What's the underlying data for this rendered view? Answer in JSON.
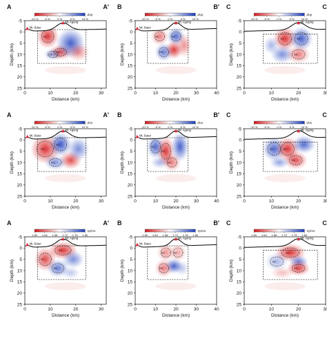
{
  "chart_data": {
    "type": "heatmap",
    "layout": {
      "rows": 3,
      "cols": 3
    },
    "shared_axes": {
      "xlabel": "Distance (km)",
      "ylabel": "Depth (km)",
      "xlim": [
        0,
        40
      ],
      "ylim": [
        25,
        -5
      ],
      "col_x_ticks": [
        [
          0,
          10,
          20,
          30
        ],
        [
          0,
          10,
          20,
          30,
          40
        ],
        [
          0,
          10,
          20,
          30
        ]
      ],
      "col_x_max": [
        32,
        40,
        30
      ],
      "y_ticks": [
        -5,
        0,
        5,
        10,
        15,
        20,
        25
      ]
    },
    "profiles": [
      {
        "start_label": "A",
        "end_label": "A'",
        "start_volcano": "Mt. Batur",
        "start_volcano_km": 1,
        "end_volcano": "Mt. Agung",
        "end_volcano_km": 15,
        "box_km": [
          5,
          24
        ],
        "box_depth": [
          -1,
          14
        ]
      },
      {
        "start_label": "B",
        "end_label": "B'",
        "start_volcano": "Mt. Batur",
        "start_volcano_km": 1,
        "end_volcano": "Mt. Agung",
        "end_volcano_km": 20,
        "box_km": [
          6,
          26
        ],
        "box_depth": [
          -1,
          14
        ]
      },
      {
        "start_label": "C",
        "end_label": "C'",
        "start_volcano": "",
        "start_volcano_km": null,
        "end_volcano": "Mt. Agung",
        "end_volcano_km": 20,
        "box_km": [
          7,
          27
        ],
        "box_depth": [
          1,
          14
        ]
      }
    ],
    "rows": [
      {
        "parameter": "dVp",
        "colorbar_ticks": [
          "-10 %",
          "-5 %",
          "0 %",
          "5 %",
          "10 %"
        ],
        "colorbar_label": "dVp",
        "zones": [
          "S1",
          "S2",
          "S3"
        ],
        "anomalies": [
          [
            {
              "x": 9,
              "z": 2,
              "rx": 3,
              "rz": 4,
              "v": -0.9
            },
            {
              "x": 14,
              "z": 9,
              "rx": 3,
              "rz": 2.5,
              "v": -0.8
            },
            {
              "x": 18,
              "z": 5,
              "rx": 4,
              "rz": 5,
              "v": 0.85
            },
            {
              "x": 11,
              "z": 10,
              "rx": 2.5,
              "rz": 2,
              "v": 0.5
            },
            {
              "x": 21,
              "z": 9,
              "rx": 3,
              "rz": 3,
              "v": -0.5
            }
          ],
          [
            {
              "x": 12,
              "z": 2,
              "rx": 3,
              "rz": 3,
              "v": -0.6
            },
            {
              "x": 20,
              "z": 2,
              "rx": 3,
              "rz": 3,
              "v": 0.8
            },
            {
              "x": 19,
              "z": 8,
              "rx": 3,
              "rz": 3,
              "v": -0.9
            },
            {
              "x": 14,
              "z": 9,
              "rx": 3,
              "rz": 3,
              "v": 0.7
            },
            {
              "x": 24,
              "z": 6,
              "rx": 2.5,
              "rz": 4,
              "v": -0.5
            }
          ],
          [
            {
              "x": 15,
              "z": 3,
              "rx": 3,
              "rz": 4,
              "v": -0.9
            },
            {
              "x": 21,
              "z": 3,
              "rx": 3,
              "rz": 4,
              "v": 0.85
            },
            {
              "x": 14,
              "z": 10,
              "rx": 3,
              "rz": 3,
              "v": 0.6
            },
            {
              "x": 20,
              "z": 10,
              "rx": 3,
              "rz": 3,
              "v": -0.6
            },
            {
              "x": 10,
              "z": 6,
              "rx": 2,
              "rz": 3,
              "v": 0.4
            }
          ]
        ]
      },
      {
        "parameter": "dVs",
        "colorbar_ticks": [
          "-10 %",
          "-5 %",
          "0 %",
          "5 %",
          "10 %"
        ],
        "colorbar_label": "dVs",
        "zones": [
          "S1",
          "S2",
          "S3"
        ],
        "anomalies": [
          [
            {
              "x": 8,
              "z": 4,
              "rx": 4,
              "rz": 5,
              "v": -0.9
            },
            {
              "x": 14,
              "z": 2,
              "rx": 3,
              "rz": 4,
              "v": 0.9
            },
            {
              "x": 18,
              "z": 9,
              "rx": 3,
              "rz": 3,
              "v": -0.8
            },
            {
              "x": 12,
              "z": 10,
              "rx": 3,
              "rz": 2.5,
              "v": 0.6
            },
            {
              "x": 21,
              "z": 4,
              "rx": 3,
              "rz": 4,
              "v": 0.6
            }
          ],
          [
            {
              "x": 10,
              "z": 3,
              "rx": 3,
              "rz": 4,
              "v": 0.8
            },
            {
              "x": 15,
              "z": 5,
              "rx": 3,
              "rz": 5,
              "v": -0.9
            },
            {
              "x": 22,
              "z": 3,
              "rx": 3,
              "rz": 5,
              "v": 0.85
            },
            {
              "x": 18,
              "z": 10,
              "rx": 3,
              "rz": 3,
              "v": -0.6
            },
            {
              "x": 12,
              "z": 10,
              "rx": 3,
              "rz": 2,
              "v": 0.4
            }
          ],
          [
            {
              "x": 11,
              "z": 4,
              "rx": 3,
              "rz": 4,
              "v": 0.8
            },
            {
              "x": 16,
              "z": 4,
              "rx": 3,
              "rz": 4,
              "v": -0.9
            },
            {
              "x": 22,
              "z": 2,
              "rx": 3,
              "rz": 3,
              "v": 0.8
            },
            {
              "x": 19,
              "z": 9,
              "rx": 3,
              "rz": 3,
              "v": -0.8
            },
            {
              "x": 13,
              "z": 10,
              "rx": 2.5,
              "rz": 2,
              "v": 0.5
            }
          ]
        ]
      },
      {
        "parameter": "Vp/Vs",
        "colorbar_ticks": [
          "1.60",
          "1.64",
          "1.68",
          "1.72",
          "1.76",
          "1.80"
        ],
        "colorbar_label": "Vp/Vs",
        "zones": [
          "S1",
          "S2",
          "S3"
        ],
        "anomalies": [
          [
            {
              "x": 8,
              "z": 5,
              "rx": 3,
              "rz": 4,
              "v": -0.8
            },
            {
              "x": 15,
              "z": 1,
              "rx": 4,
              "rz": 3,
              "v": -0.9
            },
            {
              "x": 19,
              "z": 5,
              "rx": 3,
              "rz": 3,
              "v": 0.6
            },
            {
              "x": 13,
              "z": 9,
              "rx": 3,
              "rz": 3,
              "v": 0.7
            },
            {
              "x": 18,
              "z": 11,
              "rx": 2.5,
              "rz": 2,
              "v": 0.3
            }
          ],
          [
            {
              "x": 15,
              "z": 2,
              "rx": 3,
              "rz": 3,
              "v": -0.5
            },
            {
              "x": 21,
              "z": 2,
              "rx": 3,
              "rz": 3,
              "v": -0.4
            },
            {
              "x": 19,
              "z": 8,
              "rx": 3,
              "rz": 2.5,
              "v": 0.85
            },
            {
              "x": 14,
              "z": 9,
              "rx": 3,
              "rz": 3,
              "v": -0.6
            },
            {
              "x": 23,
              "z": 9,
              "rx": 2.5,
              "rz": 2.5,
              "v": 0.3
            }
          ],
          [
            {
              "x": 17,
              "z": 2,
              "rx": 4,
              "rz": 3,
              "v": -0.9
            },
            {
              "x": 12,
              "z": 6,
              "rx": 3,
              "rz": 3,
              "v": 0.4
            },
            {
              "x": 20,
              "z": 6,
              "rx": 2.5,
              "rz": 2,
              "v": 0.7
            },
            {
              "x": 20,
              "z": 9,
              "rx": 3,
              "rz": 2.5,
              "v": -0.85
            },
            {
              "x": 14,
              "z": 11,
              "rx": 3,
              "rz": 2,
              "v": -0.3
            }
          ]
        ]
      }
    ],
    "colors": {
      "negative": "#d7191c",
      "positive": "#1f3fbf",
      "neutral": "#ffffff",
      "volcano": "#e0263a"
    }
  }
}
